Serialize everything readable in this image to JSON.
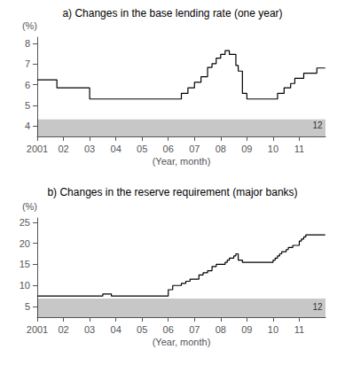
{
  "chart_data": [
    {
      "type": "line",
      "title": "a) Changes in the base lending rate (one year)",
      "xlabel": "(Year, month)",
      "ylabel": "(%)",
      "color": "#000000",
      "x": [
        2001.0,
        2001.75,
        2001.75,
        2003.0,
        2003.0,
        2006.5,
        2006.5,
        2006.75,
        2006.75,
        2007.0,
        2007.0,
        2007.25,
        2007.25,
        2007.5,
        2007.5,
        2007.67,
        2007.67,
        2007.83,
        2007.83,
        2008.0,
        2008.0,
        2008.17,
        2008.17,
        2008.33,
        2008.33,
        2008.58,
        2008.58,
        2008.67,
        2008.67,
        2008.83,
        2008.83,
        2009.0,
        2009.0,
        2010.0,
        2010.0,
        2010.17,
        2010.17,
        2010.42,
        2010.42,
        2010.67,
        2010.67,
        2010.83,
        2010.83,
        2011.0,
        2011.0,
        2011.17,
        2011.17,
        2011.5,
        2011.5,
        2011.67,
        2011.67,
        2011.99
      ],
      "values": [
        6.24,
        6.24,
        5.85,
        5.85,
        5.31,
        5.31,
        5.58,
        5.58,
        5.85,
        5.85,
        6.12,
        6.12,
        6.39,
        6.39,
        6.84,
        6.84,
        7.02,
        7.02,
        7.29,
        7.29,
        7.47,
        7.47,
        7.65,
        7.65,
        7.47,
        7.47,
        6.93,
        6.93,
        6.66,
        6.66,
        5.58,
        5.58,
        5.31,
        5.31,
        5.31,
        5.31,
        5.58,
        5.58,
        5.85,
        5.85,
        6.06,
        6.06,
        6.31,
        6.31,
        6.31,
        6.31,
        6.56,
        6.56,
        6.56,
        6.56,
        6.81,
        6.81
      ],
      "xlim": [
        2001.0,
        2012.0
      ],
      "xticks": [
        2001,
        {
          "value": 2002,
          "label": "02"
        },
        {
          "value": 2003,
          "label": "03"
        },
        {
          "value": 2004,
          "label": "04"
        },
        {
          "value": 2005,
          "label": "05"
        },
        {
          "value": 2006,
          "label": "06"
        },
        {
          "value": 2007,
          "label": "07"
        },
        {
          "value": 2008,
          "label": "08"
        },
        {
          "value": 2009,
          "label": "09"
        },
        {
          "value": 2010,
          "label": "10"
        },
        {
          "value": 2011,
          "label": "11"
        }
      ],
      "ylim": [
        3.5,
        8.3
      ],
      "yticks": [
        4,
        5,
        6,
        7,
        8
      ],
      "band": [
        3.5,
        4.32
      ],
      "annotations": [
        {
          "text": "12",
          "x": 2011.97,
          "y": 3.6
        }
      ],
      "grid": false
    },
    {
      "type": "line",
      "title": "b) Changes in the reserve requirement (major banks)",
      "xlabel": "(Year, month)",
      "ylabel": "(%)",
      "color": "#000000",
      "x": [
        2001.0,
        2003.5,
        2003.5,
        2003.83,
        2003.83,
        2006.0,
        2006.0,
        2006.17,
        2006.17,
        2006.5,
        2006.5,
        2006.67,
        2006.67,
        2006.83,
        2006.83,
        2007.17,
        2007.17,
        2007.33,
        2007.33,
        2007.5,
        2007.5,
        2007.67,
        2007.67,
        2007.83,
        2007.83,
        2008.17,
        2008.17,
        2008.25,
        2008.25,
        2008.33,
        2008.33,
        2008.5,
        2008.5,
        2008.58,
        2008.58,
        2008.67,
        2008.67,
        2008.83,
        2008.83,
        2009.0,
        2010.0,
        2010.0,
        2010.08,
        2010.08,
        2010.17,
        2010.17,
        2010.25,
        2010.25,
        2010.33,
        2010.33,
        2010.5,
        2010.5,
        2010.58,
        2010.58,
        2010.75,
        2010.75,
        2010.83,
        2010.83,
        2011.0,
        2011.0,
        2011.08,
        2011.08,
        2011.17,
        2011.17,
        2011.25,
        2011.25,
        2011.5,
        2011.99
      ],
      "values": [
        7.5,
        7.5,
        8.0,
        8.0,
        7.5,
        7.5,
        9.0,
        9.0,
        10.0,
        10.0,
        10.5,
        10.5,
        11.0,
        11.0,
        11.5,
        11.5,
        12.5,
        12.5,
        13.0,
        13.0,
        13.5,
        13.5,
        14.5,
        14.5,
        15.0,
        15.0,
        15.5,
        15.5,
        16.0,
        16.0,
        16.5,
        16.5,
        17.0,
        17.0,
        17.5,
        17.5,
        16.0,
        16.0,
        15.5,
        15.5,
        15.5,
        16.0,
        16.0,
        16.5,
        16.5,
        17.0,
        17.0,
        17.5,
        17.5,
        18.0,
        18.0,
        18.5,
        18.5,
        19.0,
        19.0,
        19.5,
        19.5,
        19.5,
        19.5,
        20.5,
        20.5,
        21.0,
        21.0,
        21.5,
        21.5,
        22.0,
        22.0,
        22.0
      ],
      "xlim": [
        2001.0,
        2012.0
      ],
      "xticks": [
        2001,
        {
          "value": 2002,
          "label": "02"
        },
        {
          "value": 2003,
          "label": "03"
        },
        {
          "value": 2004,
          "label": "04"
        },
        {
          "value": 2005,
          "label": "05"
        },
        {
          "value": 2006,
          "label": "06"
        },
        {
          "value": 2007,
          "label": "07"
        },
        {
          "value": 2008,
          "label": "08"
        },
        {
          "value": 2009,
          "label": "09"
        },
        {
          "value": 2010,
          "label": "10"
        },
        {
          "value": 2011,
          "label": "11"
        }
      ],
      "ylim": [
        2.5,
        26.0
      ],
      "yticks": [
        5,
        10,
        15,
        20,
        25
      ],
      "band": [
        2.5,
        6.9
      ],
      "annotations": [
        {
          "text": "12",
          "x": 2011.97,
          "y": 2.8
        }
      ],
      "grid": false
    }
  ]
}
